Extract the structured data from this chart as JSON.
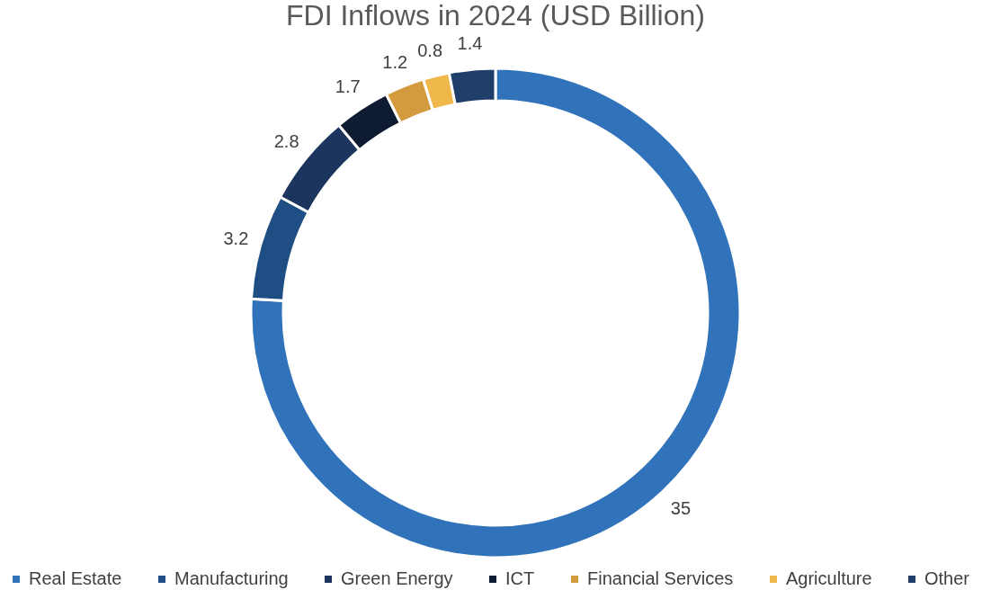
{
  "chart_data": {
    "type": "donut",
    "title": "FDI Inflows in 2024 (USD Billion)",
    "categories": [
      "Real Estate",
      "Manufacturing",
      "Green Energy",
      "ICT",
      "Financial Services",
      "Agriculture",
      "Other"
    ],
    "values": [
      35,
      3.2,
      2.8,
      1.7,
      1.2,
      0.8,
      1.4
    ],
    "colors": [
      "#3173bb",
      "#1f4e85",
      "#1c355e",
      "#0e1b31",
      "#d49a3e",
      "#f0b84b",
      "#1f3f6a"
    ],
    "data_labels": true,
    "legend": "bottom"
  }
}
